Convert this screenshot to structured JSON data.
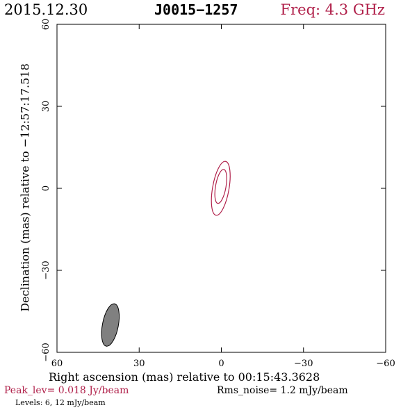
{
  "header": {
    "date": "2015.12.30",
    "source": "J0015−1257",
    "freq": "Freq: 4.3 GHz"
  },
  "footer": {
    "peak": "Peak_lev=  0.018 Jy/beam",
    "rms": "Rms_noise=   1.2 mJy/beam",
    "levels": "Levels:   6,  12 mJy/beam"
  },
  "colors": {
    "contour": "#b0204a",
    "beam_fill": "#808080",
    "header_freq": "#b0204a"
  },
  "chart_data": {
    "type": "contour",
    "xlabel": "Right ascension (mas) relative to 00:15:43.3628",
    "ylabel": "Declination (mas) relative to −12:57:17.518",
    "xlim": [
      60,
      -60
    ],
    "ylim": [
      -60,
      60
    ],
    "xticks": [
      60,
      30,
      0,
      -30,
      -60
    ],
    "yticks": [
      60,
      30,
      0,
      -30,
      -60
    ],
    "xtick_labels": [
      "60",
      "30",
      "0",
      "−30",
      "−60"
    ],
    "ytick_labels": [
      "60",
      "30",
      "0",
      "−30",
      "−60"
    ],
    "peak_jy_per_beam": 0.018,
    "rms_noise_mjy_per_beam": 1.2,
    "levels_mjy_per_beam": [
      6,
      12
    ],
    "contours": [
      {
        "level": 6,
        "center": [
          0.2,
          0.0
        ],
        "semi_major_mas": 10.0,
        "semi_minor_mas": 3.0,
        "pa_deg": 10
      },
      {
        "level": 12,
        "center": [
          0.2,
          0.7
        ],
        "semi_major_mas": 6.3,
        "semi_minor_mas": 1.9,
        "pa_deg": 10
      }
    ],
    "beam": {
      "center": [
        40.5,
        -50.0
      ],
      "semi_major_mas": 7.9,
      "semi_minor_mas": 2.9,
      "pa_deg": 11
    }
  }
}
